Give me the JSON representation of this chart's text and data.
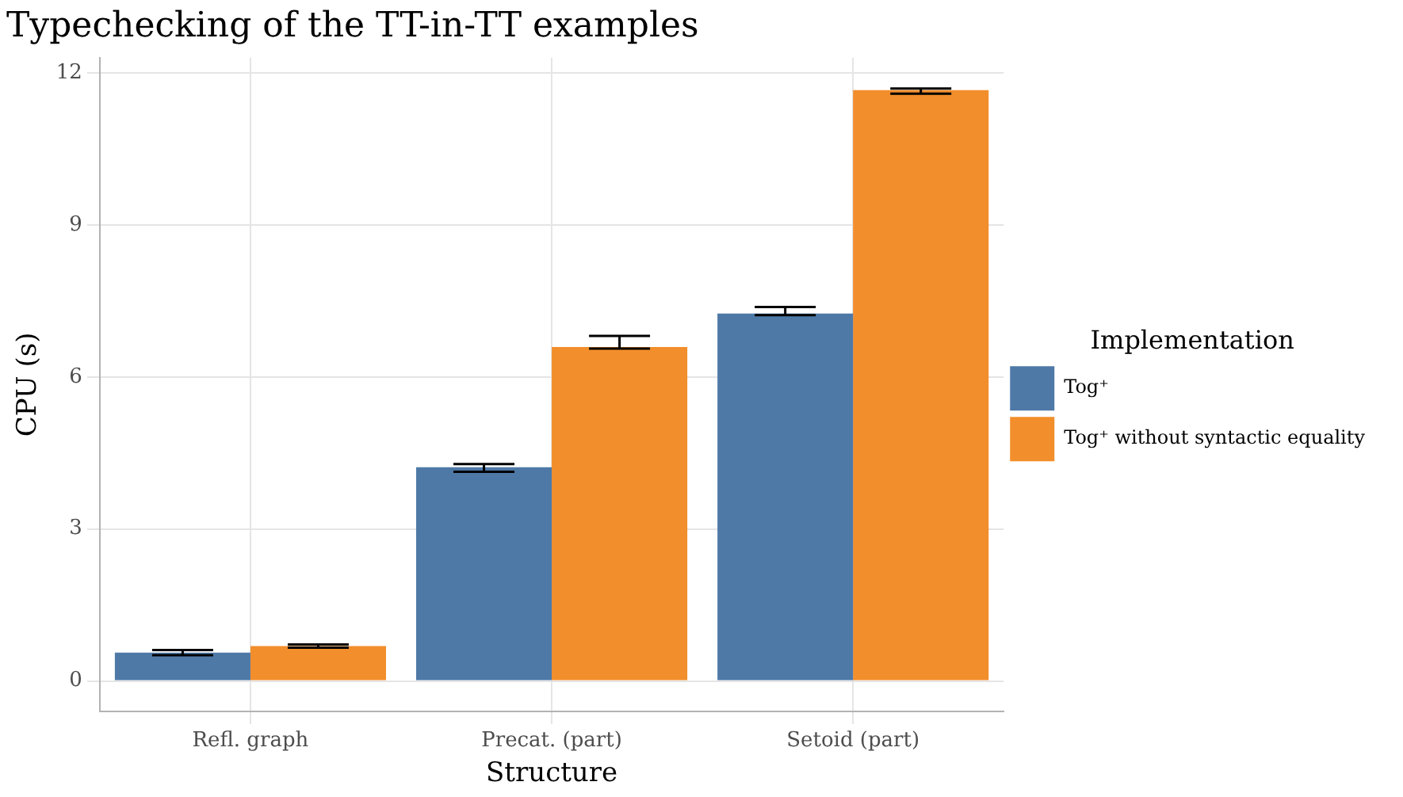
{
  "chart_data": {
    "type": "bar",
    "title": "Typechecking of the TT-in-TT examples",
    "xlabel": "Structure",
    "ylabel": "CPU (s)",
    "legend_title": "Implementation",
    "categories": [
      "Refl. graph",
      "Precat. (part)",
      "Setoid (part)"
    ],
    "series": [
      {
        "name": "Tog⁺",
        "color": "#4e79a7",
        "values": [
          0.56,
          4.22,
          7.25
        ],
        "errors": [
          0.05,
          [
            4.13,
            4.28
          ],
          [
            7.22,
            7.38
          ]
        ]
      },
      {
        "name": "Tog⁺ without syntactic equality",
        "color": "#f28e2b",
        "values": [
          0.69,
          6.59,
          11.66
        ],
        "errors": [
          [
            0.66,
            0.72
          ],
          [
            6.56,
            6.81
          ],
          [
            11.59,
            11.69
          ]
        ]
      }
    ],
    "ylim": [
      -0.6,
      12.3
    ],
    "yticks": [
      0,
      3,
      6,
      9,
      12
    ],
    "grid": true,
    "legend": "right"
  }
}
